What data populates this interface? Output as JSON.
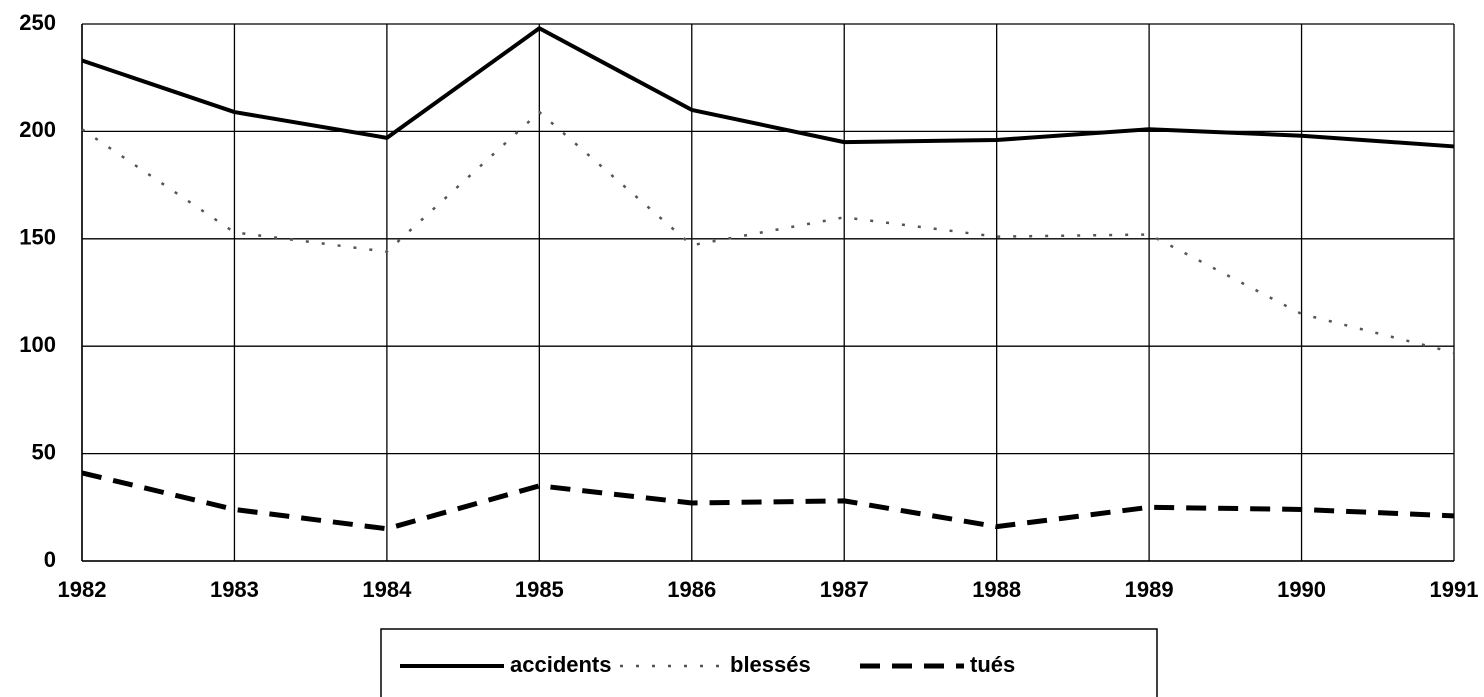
{
  "chart_data": {
    "type": "line",
    "x": [
      1982,
      1983,
      1984,
      1985,
      1986,
      1987,
      1988,
      1989,
      1990,
      1991
    ],
    "xlim": [
      1982,
      1991
    ],
    "xticks": [
      1982,
      1983,
      1984,
      1985,
      1986,
      1987,
      1988,
      1989,
      1990,
      1991
    ],
    "ylim": [
      0,
      250
    ],
    "yticks": [
      0,
      50,
      100,
      150,
      200,
      250
    ],
    "grid": true,
    "legend": "bottom",
    "series": [
      {
        "name": "accidents",
        "color": "#000000",
        "dash": "solid",
        "values": [
          233,
          209,
          197,
          248,
          210,
          195,
          196,
          201,
          198,
          193
        ]
      },
      {
        "name": "blessés",
        "color": "#555555",
        "dash": "dotted",
        "values": [
          201,
          153,
          144,
          209,
          147,
          160,
          151,
          152,
          115,
          97
        ]
      },
      {
        "name": "tués",
        "color": "#000000",
        "dash": "dashed",
        "values": [
          41,
          24,
          15,
          35,
          27,
          28,
          16,
          25,
          24,
          21
        ]
      }
    ]
  }
}
